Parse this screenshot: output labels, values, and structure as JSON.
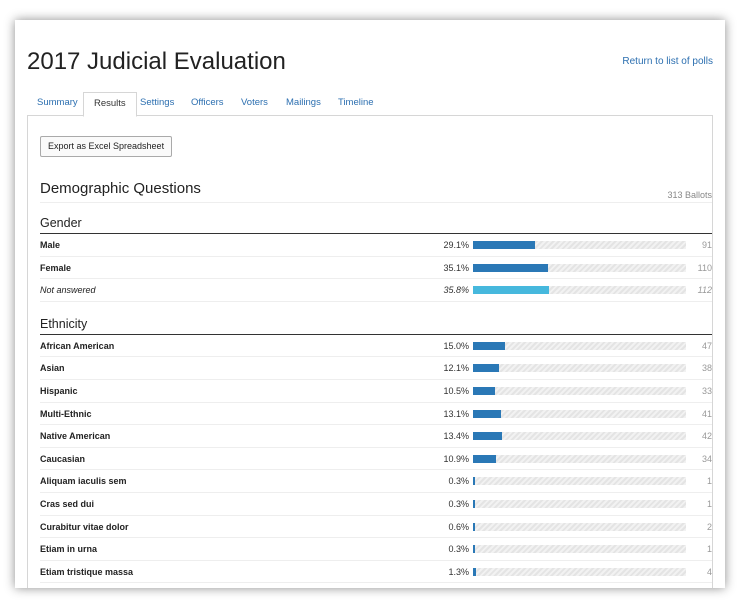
{
  "page": {
    "title": "2017 Judicial Evaluation",
    "return_link": "Return to list of polls"
  },
  "tabs": [
    {
      "label": "Summary",
      "active": false
    },
    {
      "label": "Results",
      "active": true
    },
    {
      "label": "Settings",
      "active": false
    },
    {
      "label": "Officers",
      "active": false
    },
    {
      "label": "Voters",
      "active": false
    },
    {
      "label": "Mailings",
      "active": false
    },
    {
      "label": "Timeline",
      "active": false
    }
  ],
  "toolbar": {
    "export_label": "Export as Excel Spreadsheet"
  },
  "section": {
    "title": "Demographic Questions",
    "ballots": "313 Ballots"
  },
  "colors": {
    "bar_fill": "#2a78b6",
    "bar_fill_not_answered": "#46b8dd",
    "link": "#2c6fb0"
  },
  "groups": [
    {
      "title": "Gender",
      "rows": [
        {
          "label": "Male",
          "percent": "29.1%",
          "value": 29.1,
          "count": "91",
          "not_answered": false
        },
        {
          "label": "Female",
          "percent": "35.1%",
          "value": 35.1,
          "count": "110",
          "not_answered": false
        },
        {
          "label": "Not answered",
          "percent": "35.8%",
          "value": 35.8,
          "count": "112",
          "not_answered": true
        }
      ]
    },
    {
      "title": "Ethnicity",
      "rows": [
        {
          "label": "African American",
          "percent": "15.0%",
          "value": 15.0,
          "count": "47",
          "not_answered": false
        },
        {
          "label": "Asian",
          "percent": "12.1%",
          "value": 12.1,
          "count": "38",
          "not_answered": false
        },
        {
          "label": "Hispanic",
          "percent": "10.5%",
          "value": 10.5,
          "count": "33",
          "not_answered": false
        },
        {
          "label": "Multi-Ethnic",
          "percent": "13.1%",
          "value": 13.1,
          "count": "41",
          "not_answered": false
        },
        {
          "label": "Native American",
          "percent": "13.4%",
          "value": 13.4,
          "count": "42",
          "not_answered": false
        },
        {
          "label": "Caucasian",
          "percent": "10.9%",
          "value": 10.9,
          "count": "34",
          "not_answered": false
        },
        {
          "label": "Aliquam iaculis sem",
          "percent": "0.3%",
          "value": 0.3,
          "count": "1",
          "not_answered": false
        },
        {
          "label": "Cras sed dui",
          "percent": "0.3%",
          "value": 0.3,
          "count": "1",
          "not_answered": false
        },
        {
          "label": "Curabitur vitae dolor",
          "percent": "0.6%",
          "value": 0.6,
          "count": "2",
          "not_answered": false
        },
        {
          "label": "Etiam in urna",
          "percent": "0.3%",
          "value": 0.3,
          "count": "1",
          "not_answered": false
        },
        {
          "label": "Etiam tristique massa",
          "percent": "1.3%",
          "value": 1.3,
          "count": "4",
          "not_answered": false
        }
      ]
    }
  ]
}
